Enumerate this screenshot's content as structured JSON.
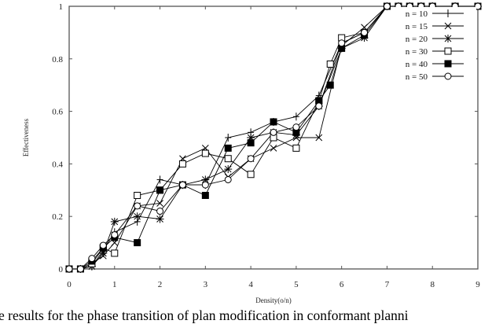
{
  "chart_data": {
    "type": "line",
    "title": "",
    "xlabel": "Density(o/n)",
    "ylabel": "Effectiveness",
    "xlim": [
      0,
      9
    ],
    "ylim": [
      0,
      1
    ],
    "xticks": [
      0,
      1,
      2,
      3,
      4,
      5,
      6,
      7,
      8,
      9
    ],
    "yticks": [
      0,
      0.2,
      0.4,
      0.6,
      0.8,
      1
    ],
    "ytick_labels": [
      "0",
      "0.2",
      "0.4",
      "0.6",
      "0.8",
      "1"
    ],
    "grid": false,
    "legend_position": "upper right (inside)",
    "series": [
      {
        "name": "n = 10",
        "marker": "plus",
        "points": [
          [
            0,
            0
          ],
          [
            0.25,
            0
          ],
          [
            0.5,
            0.01
          ],
          [
            0.75,
            0.07
          ],
          [
            1,
            0.14
          ],
          [
            1.5,
            0.18
          ],
          [
            2,
            0.34
          ],
          [
            2.5,
            0.32
          ],
          [
            3,
            0.32
          ],
          [
            3.5,
            0.5
          ],
          [
            4,
            0.52
          ],
          [
            4.5,
            0.56
          ],
          [
            5,
            0.58
          ],
          [
            5.5,
            0.66
          ],
          [
            6,
            0.86
          ],
          [
            6.5,
            0.9
          ],
          [
            7,
            1
          ],
          [
            7.25,
            1
          ],
          [
            7.5,
            1
          ],
          [
            7.75,
            1
          ],
          [
            8,
            1
          ],
          [
            8.5,
            1
          ],
          [
            9,
            1
          ]
        ]
      },
      {
        "name": "n = 15",
        "marker": "x",
        "points": [
          [
            0,
            0
          ],
          [
            0.25,
            0
          ],
          [
            0.5,
            0.02
          ],
          [
            0.75,
            0.05
          ],
          [
            1,
            0.1
          ],
          [
            1.5,
            0.24
          ],
          [
            2,
            0.25
          ],
          [
            2.5,
            0.42
          ],
          [
            3,
            0.46
          ],
          [
            3.5,
            0.35
          ],
          [
            4,
            0.42
          ],
          [
            4.5,
            0.46
          ],
          [
            5,
            0.5
          ],
          [
            5.5,
            0.5
          ],
          [
            6,
            0.85
          ],
          [
            6.5,
            0.92
          ],
          [
            7,
            1
          ],
          [
            7.25,
            1
          ],
          [
            7.5,
            1
          ],
          [
            7.75,
            1
          ],
          [
            8,
            1
          ],
          [
            8.5,
            1
          ],
          [
            9,
            1
          ]
        ]
      },
      {
        "name": "n = 20",
        "marker": "star",
        "points": [
          [
            0,
            0
          ],
          [
            0.25,
            0
          ],
          [
            0.5,
            0.01
          ],
          [
            0.75,
            0.06
          ],
          [
            1,
            0.18
          ],
          [
            1.5,
            0.2
          ],
          [
            2,
            0.19
          ],
          [
            2.5,
            0.32
          ],
          [
            3,
            0.34
          ],
          [
            3.5,
            0.38
          ],
          [
            4,
            0.5
          ],
          [
            4.5,
            0.52
          ],
          [
            5,
            0.51
          ],
          [
            5.5,
            0.62
          ],
          [
            6,
            0.84
          ],
          [
            6.5,
            0.88
          ],
          [
            7,
            1
          ],
          [
            7.25,
            1
          ],
          [
            7.5,
            1
          ],
          [
            7.75,
            1
          ],
          [
            8,
            1
          ],
          [
            8.5,
            1
          ],
          [
            9,
            1
          ]
        ]
      },
      {
        "name": "n = 30",
        "marker": "square-open",
        "points": [
          [
            0,
            0
          ],
          [
            0.25,
            0
          ],
          [
            0.5,
            0.02
          ],
          [
            0.75,
            0.08
          ],
          [
            1,
            0.06
          ],
          [
            1.5,
            0.28
          ],
          [
            2,
            0.3
          ],
          [
            2.5,
            0.4
          ],
          [
            3,
            0.44
          ],
          [
            3.5,
            0.42
          ],
          [
            4,
            0.36
          ],
          [
            4.5,
            0.5
          ],
          [
            5,
            0.46
          ],
          [
            5.5,
            0.64
          ],
          [
            5.75,
            0.78
          ],
          [
            6,
            0.88
          ],
          [
            6.5,
            0.9
          ],
          [
            7,
            1
          ],
          [
            7.25,
            1
          ],
          [
            7.5,
            1
          ],
          [
            7.75,
            1
          ],
          [
            8,
            1
          ],
          [
            8.5,
            1
          ],
          [
            9,
            1
          ]
        ]
      },
      {
        "name": "n = 40",
        "marker": "square-filled",
        "points": [
          [
            0,
            0
          ],
          [
            0.25,
            0
          ],
          [
            0.5,
            0.03
          ],
          [
            0.75,
            0.08
          ],
          [
            1,
            0.12
          ],
          [
            1.5,
            0.1
          ],
          [
            2,
            0.3
          ],
          [
            2.5,
            0.32
          ],
          [
            3,
            0.28
          ],
          [
            3.5,
            0.46
          ],
          [
            4,
            0.48
          ],
          [
            4.5,
            0.56
          ],
          [
            5,
            0.52
          ],
          [
            5.5,
            0.64
          ],
          [
            5.75,
            0.7
          ],
          [
            6,
            0.84
          ],
          [
            6.5,
            0.89
          ],
          [
            7,
            1
          ],
          [
            7.25,
            1
          ],
          [
            7.5,
            1
          ],
          [
            7.75,
            1
          ],
          [
            8,
            1
          ],
          [
            8.5,
            1
          ],
          [
            9,
            1
          ]
        ]
      },
      {
        "name": "n = 50",
        "marker": "circle-open",
        "points": [
          [
            0,
            0
          ],
          [
            0.25,
            0
          ],
          [
            0.5,
            0.04
          ],
          [
            0.75,
            0.09
          ],
          [
            1,
            0.13
          ],
          [
            1.5,
            0.24
          ],
          [
            2,
            0.22
          ],
          [
            2.5,
            0.32
          ],
          [
            3,
            0.32
          ],
          [
            3.5,
            0.34
          ],
          [
            4,
            0.42
          ],
          [
            4.5,
            0.52
          ],
          [
            5,
            0.54
          ],
          [
            5.5,
            0.62
          ],
          [
            6,
            0.86
          ],
          [
            6.5,
            0.9
          ],
          [
            7,
            1
          ],
          [
            7.25,
            1
          ],
          [
            7.5,
            1
          ],
          [
            7.75,
            1
          ],
          [
            8,
            1
          ],
          [
            8.5,
            1
          ],
          [
            9,
            1
          ]
        ]
      }
    ]
  },
  "caption": "e results for the phase transition of plan modification in conformant planni"
}
